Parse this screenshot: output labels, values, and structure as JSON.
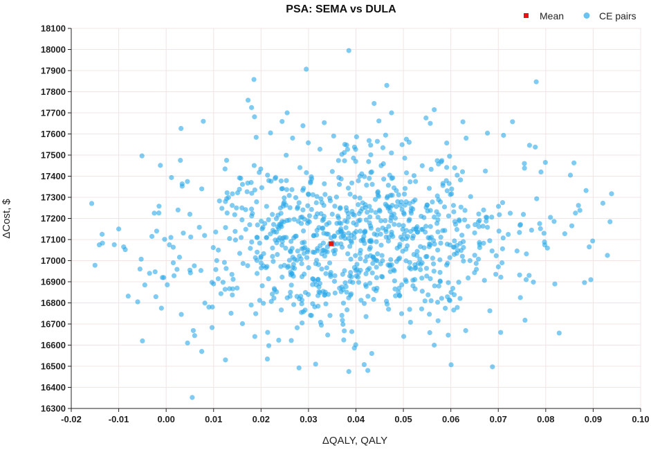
{
  "chart_data": {
    "type": "scatter",
    "title": "PSA: SEMA vs DULA",
    "xlabel": "ΔQALY, QALY",
    "ylabel": "ΔCost, $",
    "xlim": [
      -0.02,
      0.1
    ],
    "ylim": [
      16300,
      18100
    ],
    "x_ticks": [
      "-0.02",
      "-0.01",
      "0.00",
      "0.01",
      "0.02",
      "0.03",
      "0.04",
      "0.05",
      "0.06",
      "0.07",
      "0.08",
      "0.09",
      "0.10"
    ],
    "y_ticks": [
      "16300",
      "16400",
      "16500",
      "16600",
      "16700",
      "16800",
      "16900",
      "17000",
      "17100",
      "17200",
      "17300",
      "17400",
      "17500",
      "17600",
      "17700",
      "17800",
      "17900",
      "18000",
      "18100"
    ],
    "grid": true,
    "legend_position": "top-right",
    "colors": {
      "pairs": "#29A8E8",
      "mean": "#E8140C",
      "grid": "#F0E4E4"
    },
    "series": [
      {
        "name": "CE pairs",
        "kind": "point-cloud",
        "points": [
          [
            -0.015,
            16978
          ],
          [
            -0.0135,
            17125
          ],
          [
            -0.01,
            17150
          ],
          [
            -0.008,
            16832
          ],
          [
            -0.006,
            16805
          ],
          [
            -0.005,
            16620
          ],
          [
            -0.0045,
            16885
          ],
          [
            -0.0035,
            16940
          ],
          [
            -0.003,
            17115
          ],
          [
            -0.0025,
            17225
          ],
          [
            -0.002,
            17140
          ],
          [
            -0.0015,
            17258
          ],
          [
            -0.001,
            16775
          ],
          [
            -0.0008,
            16920
          ],
          [
            -0.0005,
            16920
          ],
          [
            0.001,
            17110
          ],
          [
            0.0015,
            16990
          ],
          [
            0.0025,
            17240
          ],
          [
            0.003,
            17475
          ],
          [
            0.0045,
            16610
          ],
          [
            0.005,
            17220
          ],
          [
            0.0055,
            16352
          ],
          [
            0.006,
            16645
          ],
          [
            0.0075,
            16570
          ],
          [
            0.0075,
            17340
          ],
          [
            0.009,
            16780
          ],
          [
            0.01,
            16890
          ],
          [
            0.011,
            17050
          ],
          [
            0.0125,
            16530
          ],
          [
            0.0125,
            17280
          ],
          [
            0.0185,
            17858
          ],
          [
            0.018,
            17725
          ],
          [
            0.022,
            17605
          ],
          [
            0.0255,
            17700
          ],
          [
            0.0385,
            17995
          ],
          [
            0.0465,
            17830
          ],
          [
            0.0565,
            17715
          ],
          [
            0.078,
            17847
          ],
          [
            0.073,
            17658
          ],
          [
            0.0475,
            17700
          ],
          [
            0.0385,
            16475
          ],
          [
            0.0425,
            16480
          ],
          [
            0.0315,
            16510
          ],
          [
            0.028,
            16492
          ],
          [
            0.0565,
            16600
          ],
          [
            0.0855,
            17165
          ],
          [
            0.0885,
            17332
          ],
          [
            0.0895,
            16910
          ],
          [
            0.093,
            17025
          ],
          [
            0.081,
            17205
          ],
          [
            0.0705,
            16660
          ],
          [
            0.0765,
            16930
          ],
          [
            0.079,
            17420
          ],
          [
            0.0755,
            17460
          ],
          [
            0.0345,
            17080
          ]
        ]
      },
      {
        "name": "Mean",
        "points": [
          [
            0.0348,
            17080
          ]
        ]
      }
    ]
  }
}
